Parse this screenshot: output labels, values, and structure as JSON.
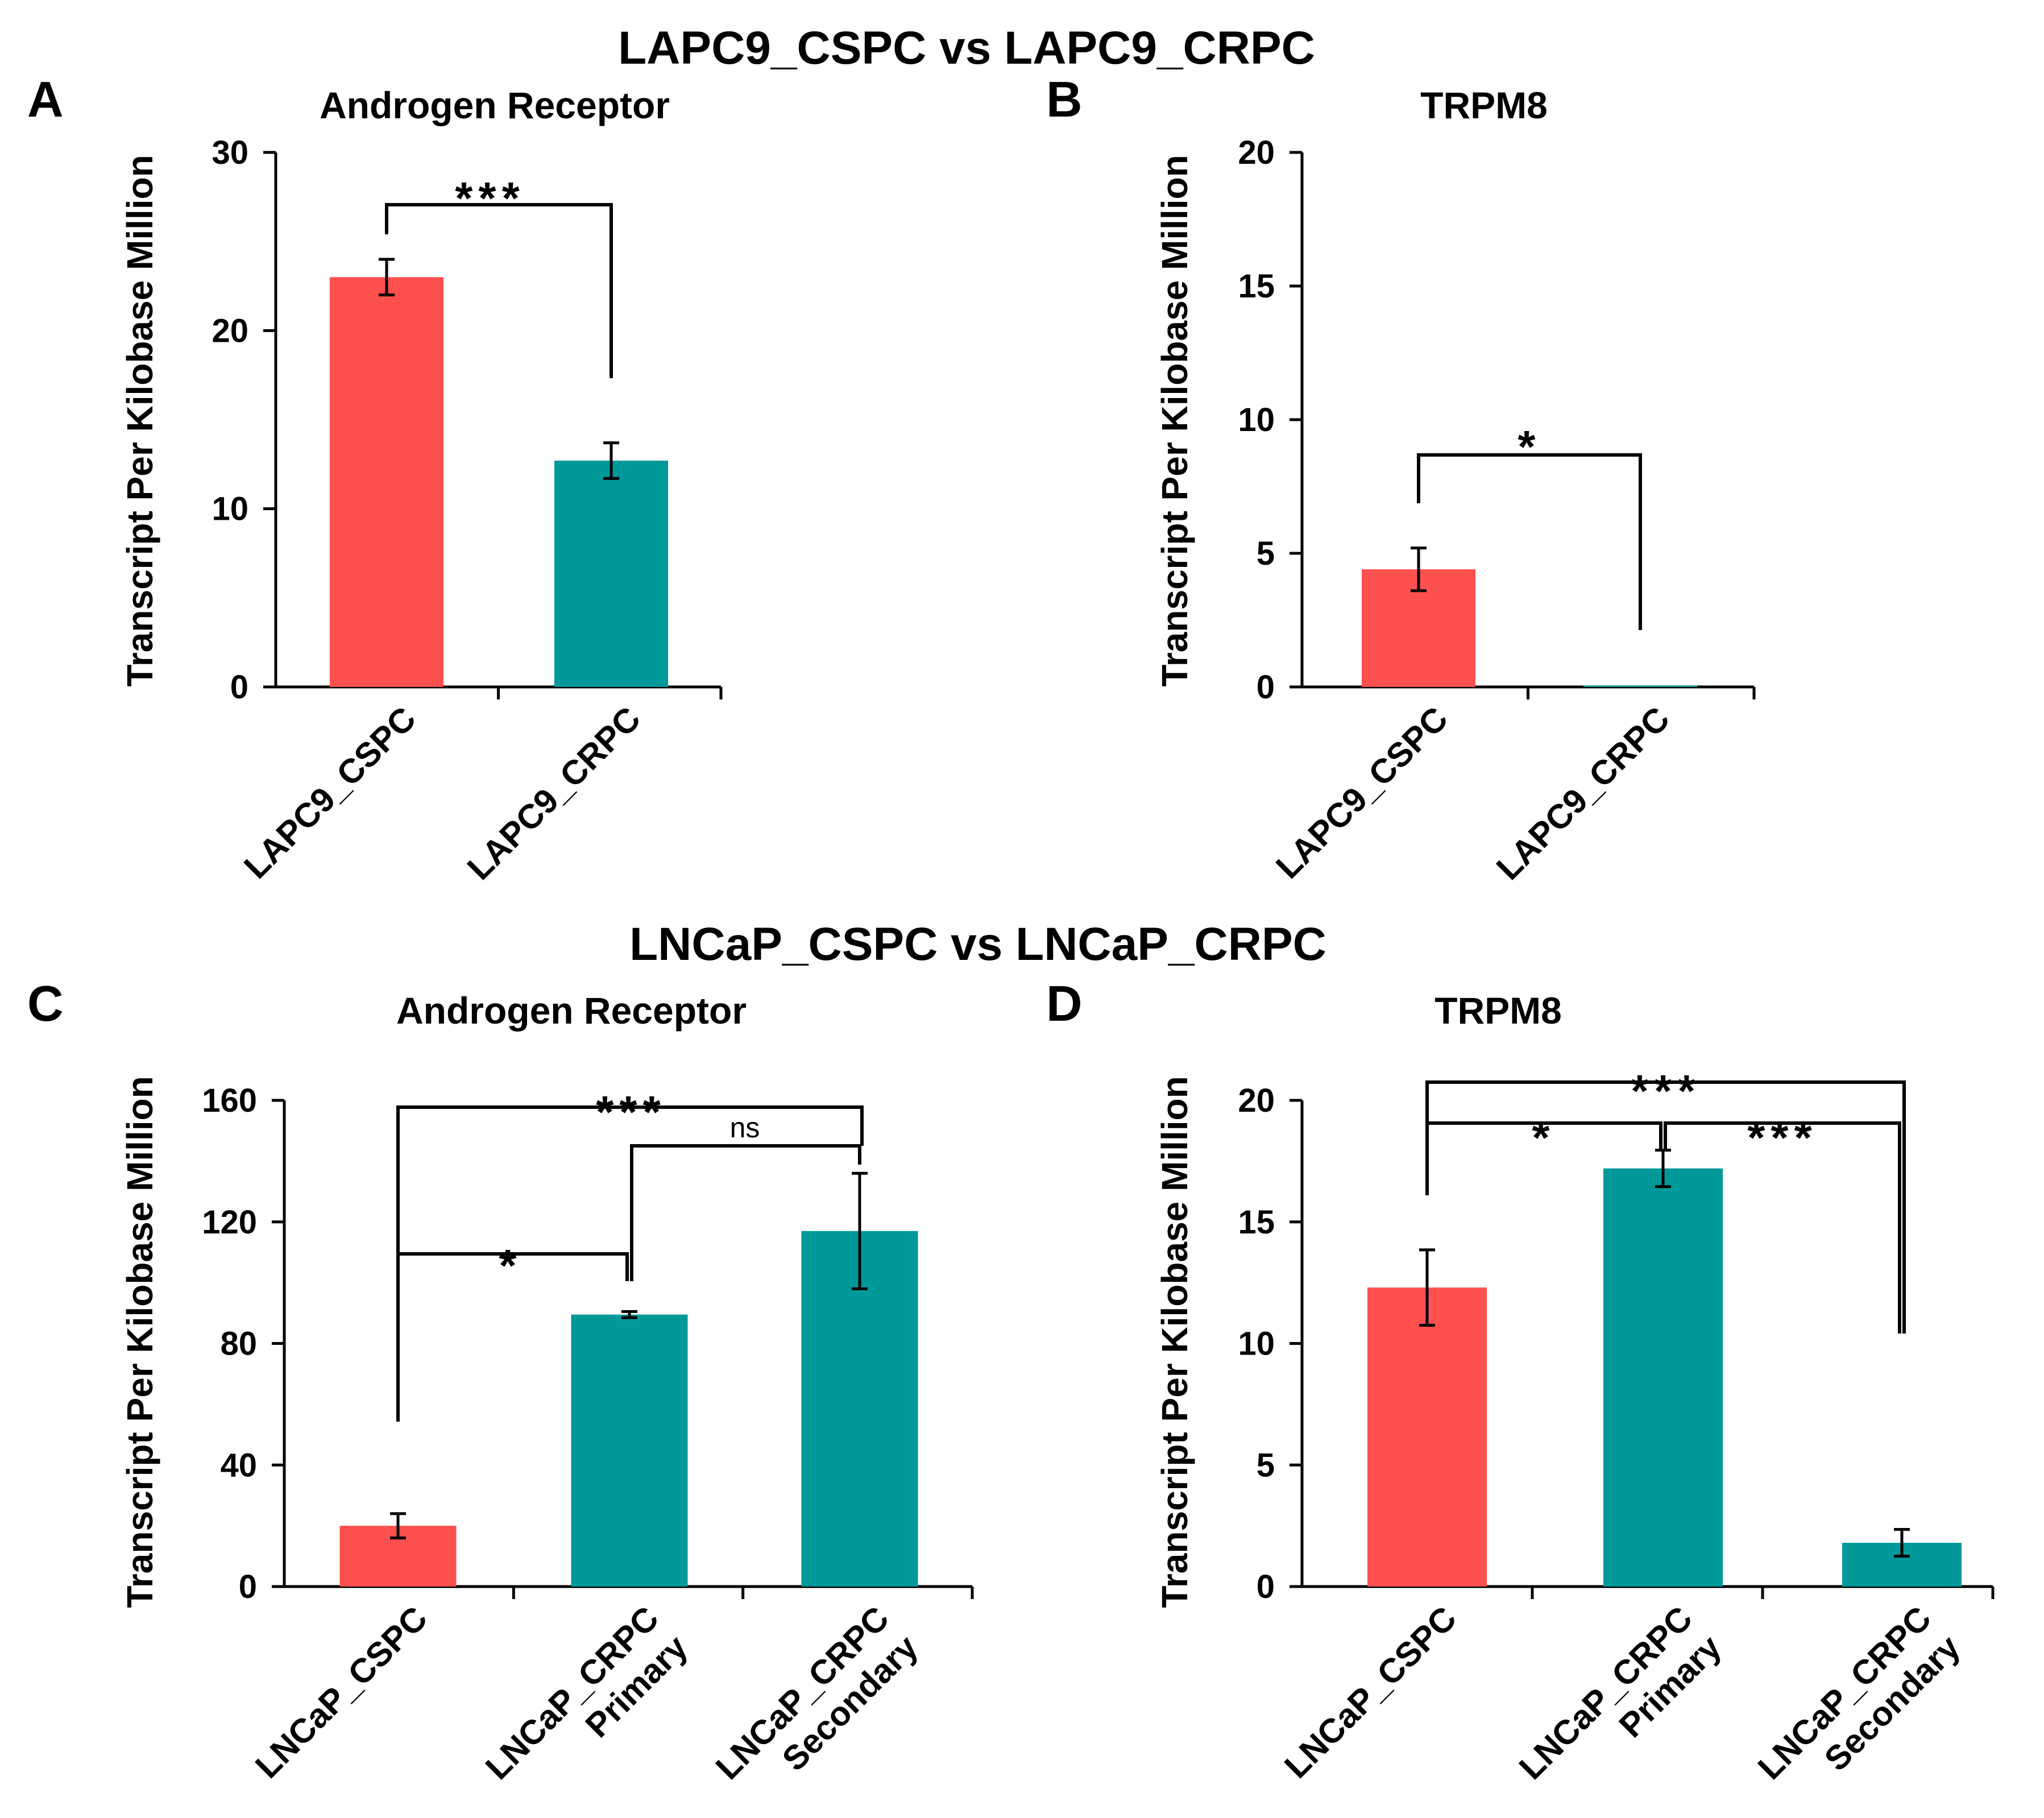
{
  "figure": {
    "section_titles": [
      "LAPC9_CSPC vs LAPC9_CRPC",
      "LNCaP_CSPC vs LNCaP_CRPC"
    ]
  },
  "colors": {
    "cspc": "#ff5050",
    "crpc": "#00999a",
    "axis": "#000000"
  },
  "chart_data": [
    {
      "panel": "A",
      "type": "bar",
      "title": "Androgen Receptor",
      "ylabel": "Transcript Per Kilobase Million",
      "xlabel": "",
      "ylim": [
        0,
        30
      ],
      "yticks": [
        0,
        10,
        20,
        30
      ],
      "grid": false,
      "categories": [
        [
          "LAPC9_CSPC"
        ],
        [
          "LAPC9_CRPC"
        ]
      ],
      "values": [
        23.0,
        12.7
      ],
      "errors": [
        1.0,
        1.0
      ],
      "colors": [
        "cspc",
        "crpc"
      ],
      "significance": [
        {
          "from": 0,
          "to": 1,
          "label": "***"
        }
      ]
    },
    {
      "panel": "B",
      "type": "bar",
      "title": "TRPM8",
      "ylabel": "Transcript Per Kilobase Million",
      "xlabel": "",
      "ylim": [
        0,
        20
      ],
      "yticks": [
        0,
        5,
        10,
        15,
        20
      ],
      "grid": false,
      "categories": [
        [
          "LAPC9_CSPC"
        ],
        [
          "LAPC9_CRPC"
        ]
      ],
      "values": [
        4.4,
        0.05
      ],
      "errors": [
        0.8,
        0
      ],
      "colors": [
        "cspc",
        "crpc"
      ],
      "significance": [
        {
          "from": 0,
          "to": 1,
          "label": "*"
        }
      ]
    },
    {
      "panel": "C",
      "type": "bar",
      "title": "Androgen Receptor",
      "ylabel": "Transcript Per Kilobase Million",
      "xlabel": "",
      "ylim": [
        0,
        160
      ],
      "yticks": [
        0,
        40,
        80,
        120,
        160
      ],
      "grid": false,
      "categories": [
        [
          "LNCaP_CSPC"
        ],
        [
          "LNCaP_CRPC",
          "Primary"
        ],
        [
          "LNCaP_CRPC",
          "Secondary"
        ]
      ],
      "values": [
        20,
        89.5,
        117
      ],
      "errors": [
        4,
        1,
        19
      ],
      "colors": [
        "cspc",
        "crpc",
        "crpc"
      ],
      "significance": [
        {
          "from": 0,
          "to": 1,
          "label": "*"
        },
        {
          "from": 1,
          "to": 2,
          "label": "ns"
        },
        {
          "from": 0,
          "to": 2,
          "label": "***"
        }
      ]
    },
    {
      "panel": "D",
      "type": "bar",
      "title": "TRPM8",
      "ylabel": "Transcript Per Kilobase Million",
      "xlabel": "",
      "ylim": [
        0,
        20
      ],
      "yticks": [
        0,
        5,
        10,
        15,
        20
      ],
      "grid": false,
      "categories": [
        [
          "LNCaP_CSPC"
        ],
        [
          "LNCaP_CRPC",
          "Primary"
        ],
        [
          "LNCaP_CRPC",
          "Secondary"
        ]
      ],
      "values": [
        12.3,
        17.2,
        1.8
      ],
      "errors": [
        1.55,
        0.75,
        0.55
      ],
      "colors": [
        "cspc",
        "crpc",
        "crpc"
      ],
      "significance": [
        {
          "from": 0,
          "to": 1,
          "label": "*"
        },
        {
          "from": 1,
          "to": 2,
          "label": "***"
        },
        {
          "from": 0,
          "to": 2,
          "label": "***"
        }
      ]
    }
  ]
}
